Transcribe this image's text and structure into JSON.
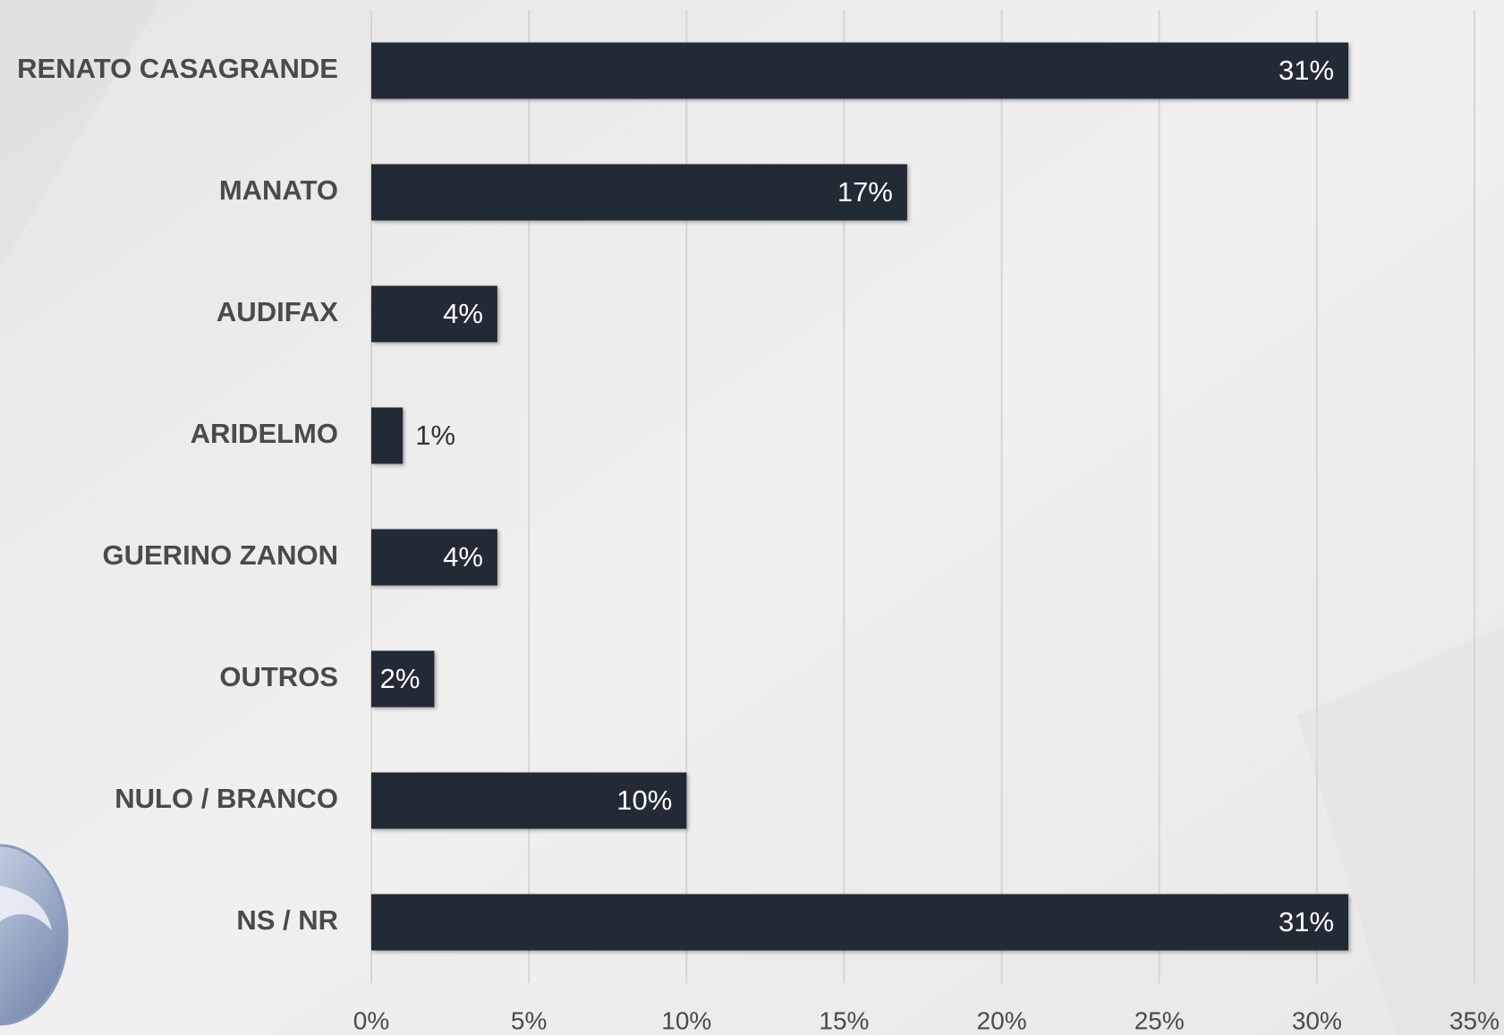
{
  "chart_data": {
    "type": "bar",
    "orientation": "horizontal",
    "categories": [
      "RENATO CASAGRANDE",
      "MANATO",
      "AUDIFAX",
      "ARIDELMO",
      "GUERINO ZANON",
      "OUTROS",
      "NULO / BRANCO",
      "NS / NR"
    ],
    "values": [
      31,
      17,
      4,
      1,
      4,
      2,
      10,
      31
    ],
    "value_labels": [
      "31%",
      "17%",
      "4%",
      "1%",
      "4%",
      "2%",
      "10%",
      "31%"
    ],
    "color": "#232a36",
    "xlim": [
      0,
      35
    ],
    "xticks": [
      {
        "value": 0,
        "label": "0%"
      },
      {
        "value": 5,
        "label": "5%"
      },
      {
        "value": 10,
        "label": "10%"
      },
      {
        "value": 15,
        "label": "15%"
      },
      {
        "value": 20,
        "label": "20%"
      },
      {
        "value": 25,
        "label": "25%"
      },
      {
        "value": 30,
        "label": "30%"
      },
      {
        "value": 35,
        "label": "35%"
      }
    ],
    "grid": true
  }
}
